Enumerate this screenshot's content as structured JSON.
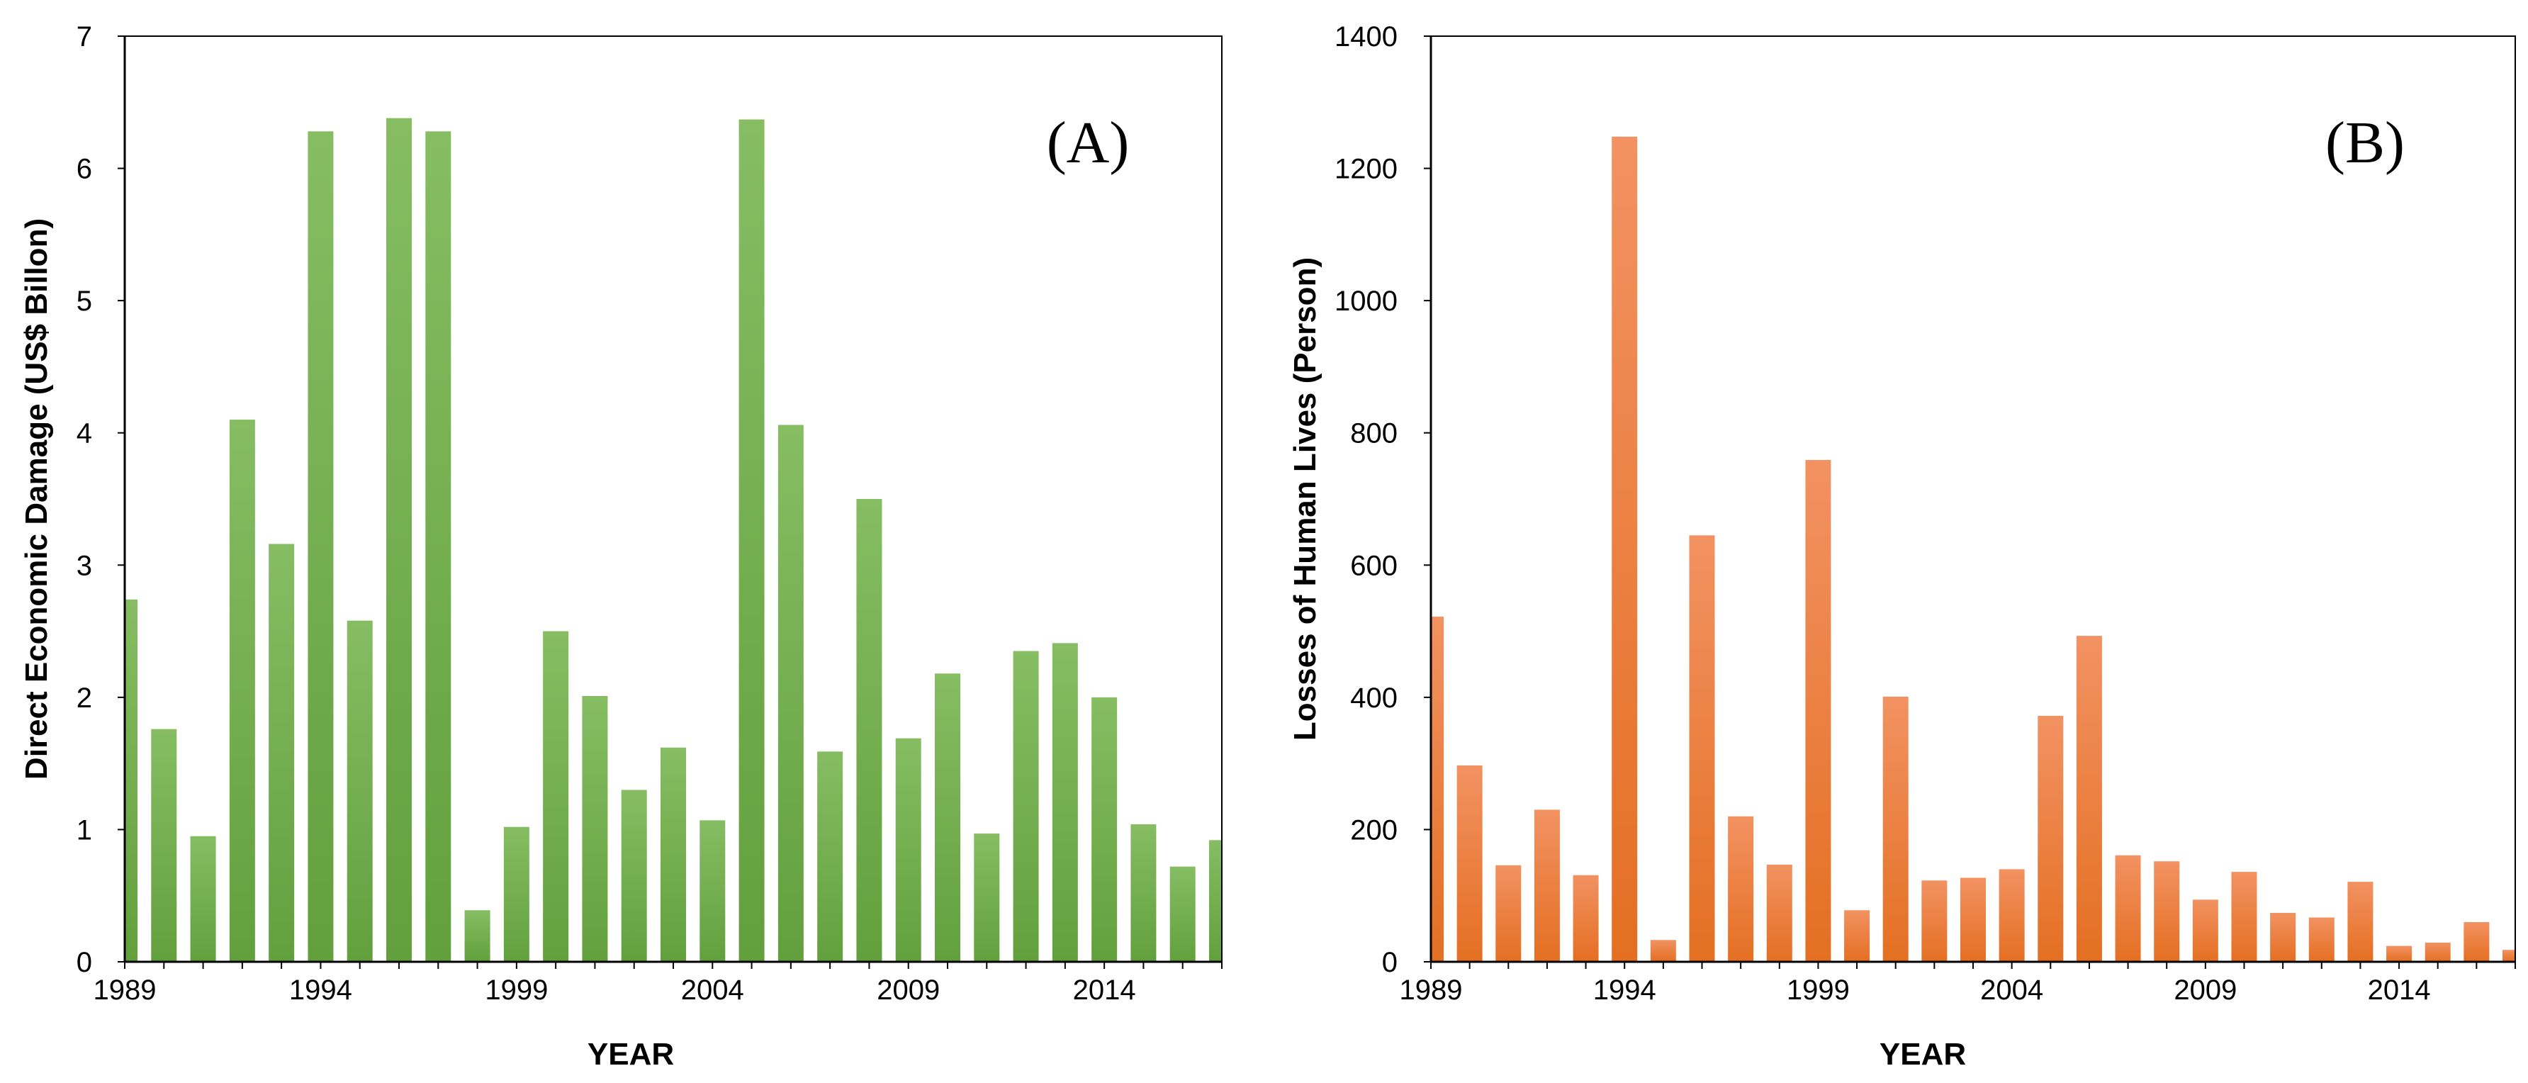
{
  "chart_data": [
    {
      "type": "bar",
      "panel_label": "(A)",
      "xlabel": "YEAR",
      "ylabel": "Direct Economic Damage (US$ Billon)",
      "ylim": [
        0,
        7
      ],
      "yticks": [
        "0",
        "1",
        "2",
        "3",
        "4",
        "5",
        "6",
        "7"
      ],
      "xticks": [
        "1989",
        "1994",
        "1999",
        "2004",
        "2009",
        "2014"
      ],
      "categories": [
        1989,
        1990,
        1991,
        1992,
        1993,
        1994,
        1995,
        1996,
        1997,
        1998,
        1999,
        2000,
        2001,
        2002,
        2003,
        2004,
        2005,
        2006,
        2007,
        2008,
        2009,
        2010,
        2011,
        2012,
        2013,
        2014,
        2015,
        2016,
        2017
      ],
      "values": [
        2.74,
        1.76,
        0.95,
        4.1,
        3.16,
        6.28,
        2.58,
        6.38,
        6.28,
        0.39,
        1.02,
        2.5,
        2.01,
        1.3,
        1.62,
        1.07,
        6.37,
        4.06,
        1.59,
        3.5,
        1.69,
        2.18,
        0.97,
        2.35,
        2.41,
        2.0,
        1.04,
        0.72,
        0.92
      ],
      "color": "#70AD47",
      "color_light": "#86BD63",
      "color_dark": "#62A03D"
    },
    {
      "type": "bar",
      "panel_label": "(B)",
      "xlabel": "YEAR",
      "ylabel": "Losses of Human Lives  (Person)",
      "ylim": [
        0,
        1400
      ],
      "yticks": [
        "0",
        "200",
        "400",
        "600",
        "800",
        "1000",
        "1200",
        "1400"
      ],
      "xticks": [
        "1989",
        "1994",
        "1999",
        "2004",
        "2009",
        "2014"
      ],
      "categories": [
        1989,
        1990,
        1991,
        1992,
        1993,
        1994,
        1995,
        1996,
        1997,
        1998,
        1999,
        2000,
        2001,
        2002,
        2003,
        2004,
        2005,
        2006,
        2007,
        2008,
        2009,
        2010,
        2011,
        2012,
        2013,
        2014,
        2015,
        2016,
        2017
      ],
      "values": [
        522,
        297,
        146,
        230,
        131,
        1248,
        33,
        645,
        220,
        147,
        759,
        78,
        401,
        123,
        127,
        140,
        372,
        493,
        161,
        152,
        94,
        136,
        74,
        67,
        121,
        24,
        29,
        60,
        18
      ],
      "color": "#ED7D31",
      "color_light": "#F29262",
      "color_dark": "#E46F22"
    }
  ]
}
